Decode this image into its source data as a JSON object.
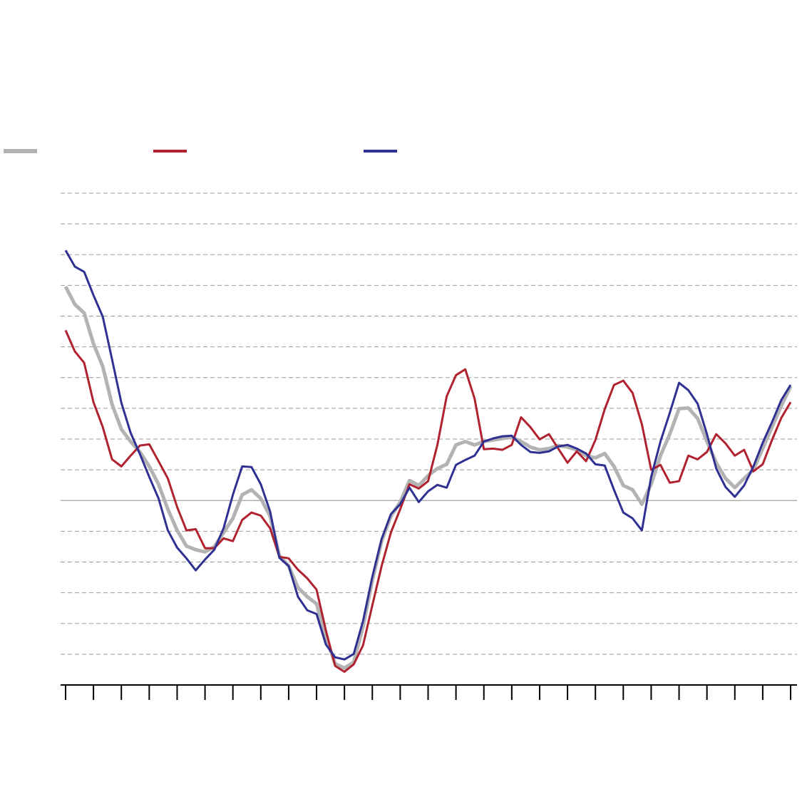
{
  "chart_data": {
    "type": "line",
    "ylim": [
      -6,
      10
    ],
    "yticks": [
      -5,
      -4,
      -3,
      -2,
      -1,
      0,
      1,
      2,
      3,
      4,
      5,
      6,
      7,
      8,
      9,
      10
    ],
    "xlim": [
      0,
      78
    ],
    "xticks": [
      0,
      3,
      6,
      9,
      12,
      15,
      18,
      21,
      24,
      27,
      30,
      33,
      36,
      39,
      42,
      45,
      48,
      51,
      54,
      57,
      60,
      63,
      66,
      69,
      72,
      75,
      78
    ],
    "grid": true,
    "series": [
      {
        "color": "#b3b3b3",
        "width": 5,
        "values": [
          6.96,
          6.38,
          6.1,
          5.1,
          4.36,
          3.13,
          2.32,
          1.92,
          1.58,
          1.11,
          0.53,
          -0.28,
          -0.97,
          -1.48,
          -1.6,
          -1.67,
          -1.5,
          -1.04,
          -0.58,
          0.19,
          0.35,
          0.07,
          -0.51,
          -1.79,
          -2.13,
          -2.83,
          -3.13,
          -3.36,
          -4.45,
          -5.31,
          -5.45,
          -5.26,
          -4.1,
          -2.6,
          -1.32,
          -0.51,
          -0.05,
          0.65,
          0.49,
          0.81,
          1.04,
          1.18,
          1.81,
          1.92,
          1.81,
          1.92,
          1.97,
          2.02,
          2.06,
          1.92,
          1.74,
          1.65,
          1.69,
          1.79,
          1.74,
          1.65,
          1.46,
          1.39,
          1.53,
          1.11,
          0.49,
          0.35,
          -0.12,
          0.53,
          1.46,
          2.16,
          2.99,
          3.01,
          2.67,
          1.92,
          1.23,
          0.72,
          0.42,
          0.72,
          1.0,
          1.69,
          2.39,
          3.08,
          3.71
        ]
      },
      {
        "color": "#b0222f",
        "width": 3,
        "values": [
          5.54,
          4.85,
          4.48,
          3.2,
          2.39,
          1.34,
          1.11,
          1.46,
          1.79,
          1.83,
          1.28,
          0.72,
          -0.21,
          -0.97,
          -0.93,
          -1.55,
          -1.55,
          -1.23,
          -1.32,
          -0.63,
          -0.39,
          -0.49,
          -0.9,
          -1.83,
          -1.88,
          -2.25,
          -2.53,
          -2.9,
          -4.22,
          -5.38,
          -5.57,
          -5.33,
          -4.71,
          -3.41,
          -2.13,
          -1.04,
          -0.28,
          0.53,
          0.39,
          0.63,
          1.81,
          3.39,
          4.08,
          4.27,
          3.32,
          1.67,
          1.69,
          1.65,
          1.81,
          2.71,
          2.39,
          1.99,
          2.16,
          1.69,
          1.23,
          1.6,
          1.28,
          1.97,
          2.97,
          3.76,
          3.9,
          3.5,
          2.48,
          1.0,
          1.16,
          0.58,
          0.63,
          1.46,
          1.34,
          1.58,
          2.16,
          1.86,
          1.46,
          1.65,
          0.95,
          1.18,
          1.97,
          2.69,
          3.2
        ]
      },
      {
        "color": "#2e3192",
        "width": 3,
        "values": [
          8.14,
          7.61,
          7.44,
          6.68,
          5.98,
          4.59,
          3.18,
          2.2,
          1.51,
          0.77,
          0.07,
          -0.97,
          -1.53,
          -1.88,
          -2.27,
          -1.92,
          -1.6,
          -0.9,
          0.19,
          1.11,
          1.09,
          0.53,
          -0.35,
          -1.86,
          -2.13,
          -3.13,
          -3.57,
          -3.69,
          -4.68,
          -5.1,
          -5.17,
          -4.99,
          -3.92,
          -2.48,
          -1.25,
          -0.44,
          -0.12,
          0.42,
          -0.05,
          0.3,
          0.51,
          0.42,
          1.16,
          1.32,
          1.46,
          1.92,
          2.02,
          2.09,
          2.11,
          1.81,
          1.58,
          1.55,
          1.6,
          1.76,
          1.81,
          1.69,
          1.53,
          1.18,
          1.14,
          0.35,
          -0.39,
          -0.58,
          -0.97,
          0.77,
          1.92,
          2.85,
          3.83,
          3.59,
          3.15,
          2.16,
          1.04,
          0.44,
          0.12,
          0.49,
          1.11,
          1.88,
          2.55,
          3.27,
          3.76
        ]
      }
    ]
  }
}
